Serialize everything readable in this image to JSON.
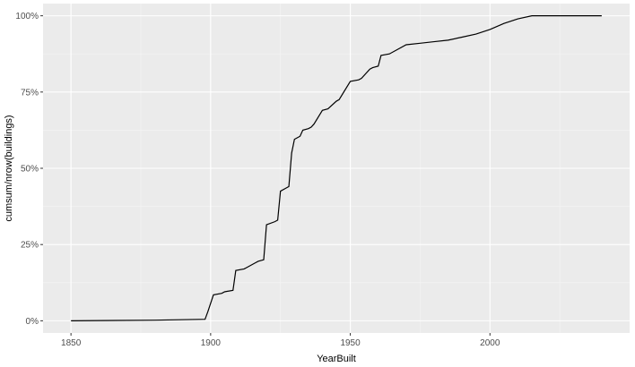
{
  "chart_data": {
    "type": "line",
    "title": "",
    "xlabel": "YearBuilt",
    "ylabel": "cumsum/nrow(buildings)",
    "xlim": [
      1840,
      2050
    ],
    "ylim": [
      -0.04,
      1.04
    ],
    "x_ticks": [
      1850,
      1900,
      1950,
      2000
    ],
    "x_tick_labels": [
      "1850",
      "1900",
      "1950",
      "2000"
    ],
    "y_ticks": [
      0,
      0.25,
      0.5,
      0.75,
      1.0
    ],
    "y_tick_labels": [
      "0%",
      "25%",
      "50%",
      "75%",
      "100%"
    ],
    "grid": true,
    "legend": "none",
    "colors": {
      "panel": "#ebebeb",
      "grid_major": "#ffffff",
      "grid_minor": "#f5f5f5",
      "line": "#000000"
    },
    "series": [
      {
        "x": [
          1850,
          1880,
          1898,
          1899,
          1901,
          1904,
          1905,
          1908,
          1909,
          1912,
          1913,
          1916,
          1917,
          1919,
          1920,
          1923,
          1924,
          1925,
          1927,
          1928,
          1929,
          1930,
          1932,
          1933,
          1935,
          1936,
          1937,
          1940,
          1942,
          1945,
          1946,
          1950,
          1953,
          1954,
          1957,
          1958,
          1960,
          1961,
          1964,
          1970,
          1975,
          1980,
          1985,
          1990,
          1995,
          2000,
          2005,
          2010,
          2015,
          2020,
          2030,
          2040
        ],
        "y": [
          0.0,
          0.002,
          0.005,
          0.03,
          0.085,
          0.09,
          0.095,
          0.1,
          0.165,
          0.17,
          0.175,
          0.19,
          0.195,
          0.2,
          0.315,
          0.325,
          0.33,
          0.425,
          0.435,
          0.44,
          0.55,
          0.595,
          0.605,
          0.625,
          0.63,
          0.635,
          0.645,
          0.69,
          0.695,
          0.72,
          0.725,
          0.785,
          0.79,
          0.795,
          0.825,
          0.83,
          0.835,
          0.87,
          0.875,
          0.905,
          0.91,
          0.915,
          0.92,
          0.93,
          0.94,
          0.955,
          0.975,
          0.99,
          1.0,
          1.0,
          1.0,
          1.0
        ]
      }
    ]
  }
}
